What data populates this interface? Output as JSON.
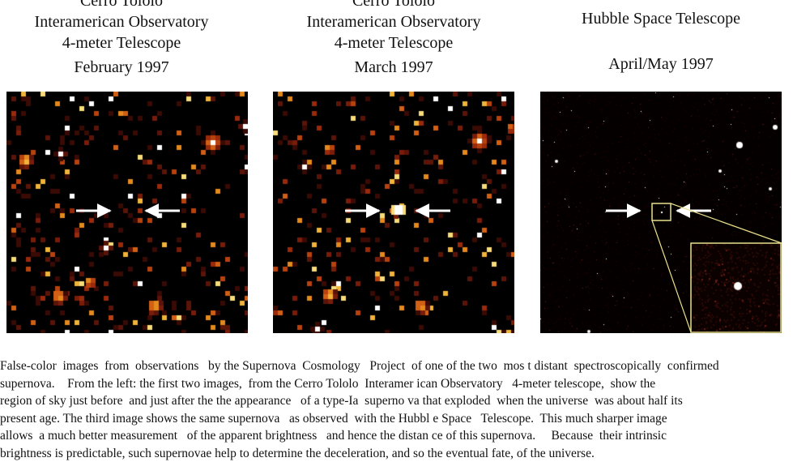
{
  "panels": [
    {
      "id": "feb",
      "lines": [
        "Cerro Tololo",
        "Interamerican Observatory",
        "4-meter Telescope"
      ],
      "date": "February 1997"
    },
    {
      "id": "mar",
      "lines": [
        "Cerro Tololo",
        "Interamerican Observatory",
        "4-meter Telescope"
      ],
      "date": "March 1997"
    },
    {
      "id": "hst",
      "lines": [
        "Hubble Space Telescope"
      ],
      "date": "April/May 1997"
    }
  ],
  "caption_lines": [
    "False-color  images  from  observations   by the Supernova  Cosmology   Project  of one of the two  mos t distant  spectroscopically  confirmed",
    "supernova.    From the left: the first two images,  from the Cerro Tololo  Interamer ican Observatory   4-meter telescope,  show the",
    "region of sky just before  and just after the the appearance   of a type-Ia  superno va that exploded  when the universe  was about half its",
    "present age. The third image shows the same supernova   as observed  with the Hubbl e Space   Telescope.  This much sharper image",
    "allows  a much better measurement   of the apparent brightness   and hence the distan ce of this supernova.     Because  their intrinsic",
    "brightness is predictable, such supernovae help to determine the deceleration, and so the eventual fate, of the universe."
  ]
}
